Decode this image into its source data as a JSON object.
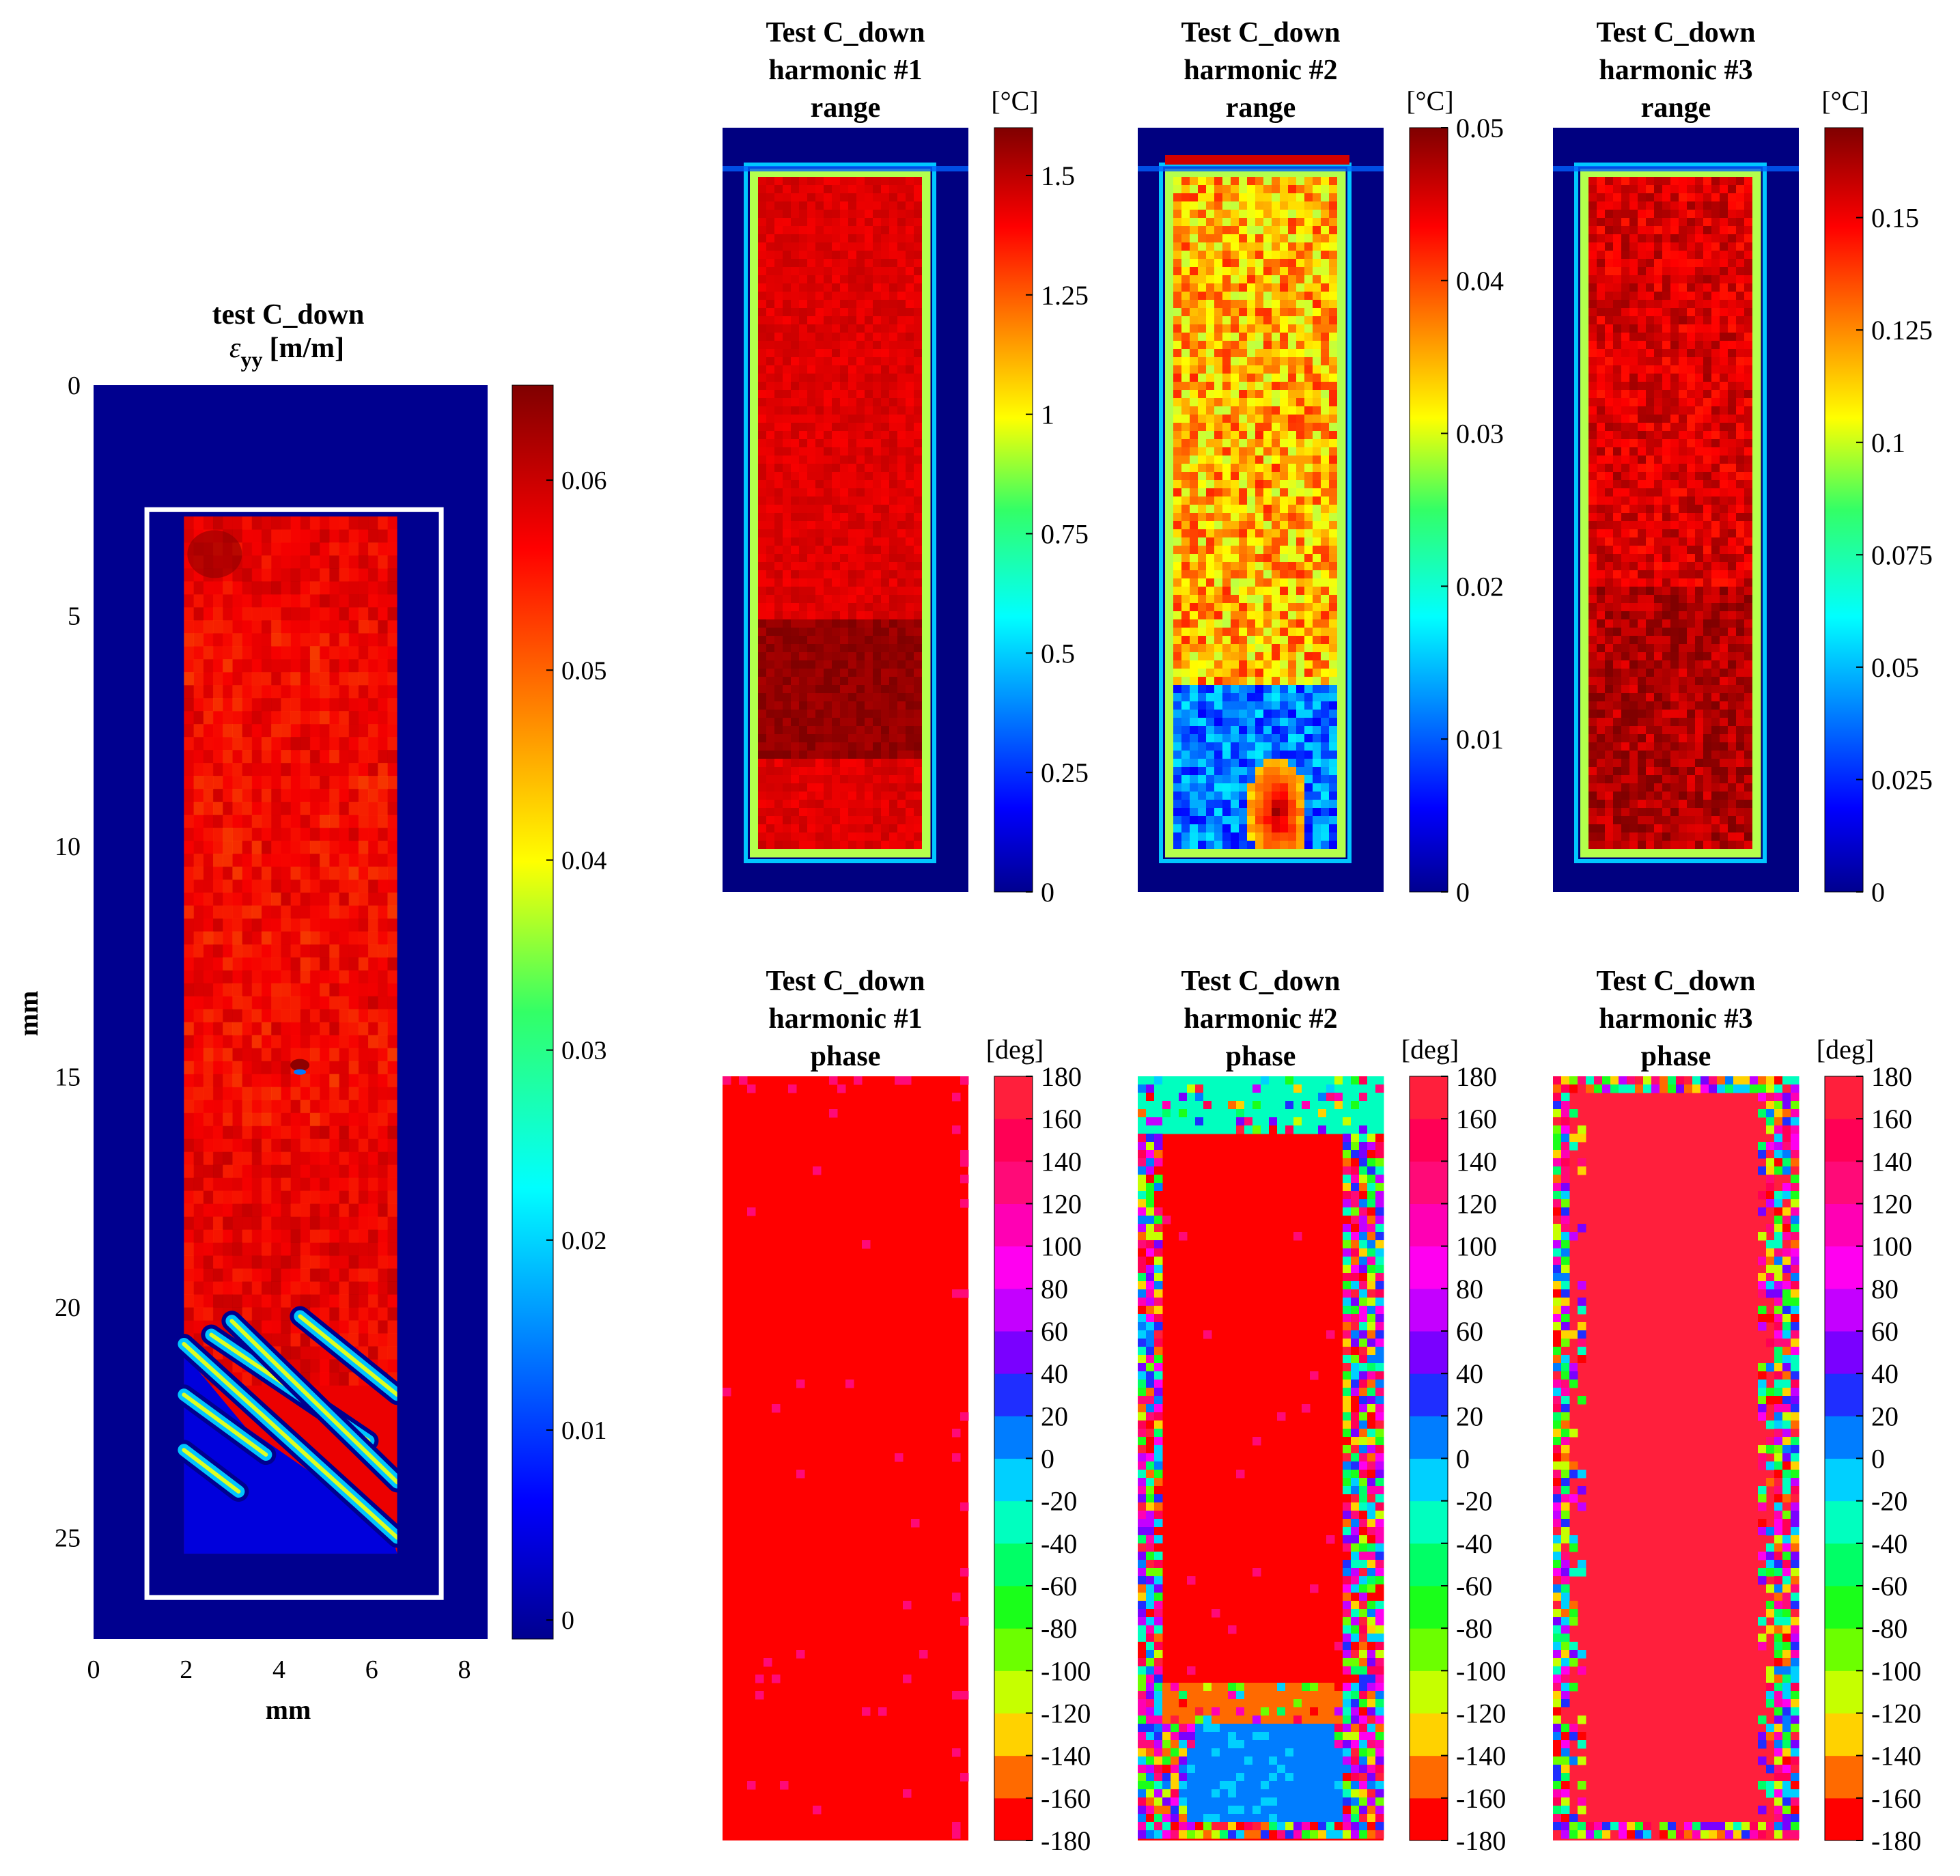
{
  "chart_data": [
    {
      "type": "heatmap",
      "id": "strain",
      "title": [
        "test C_down",
        "ε_yy [m/m]"
      ],
      "title_line1": "test C_down",
      "title_symbol": "ε",
      "title_subscript": "yy",
      "title_unit": "[m/m]",
      "xlabel": "mm",
      "ylabel": "mm",
      "xticks": [
        "0",
        "2",
        "4",
        "6",
        "8"
      ],
      "yticks": [
        "0",
        "5",
        "10",
        "15",
        "20",
        "25"
      ],
      "xlim": [
        0,
        8.5
      ],
      "ylim": [
        0,
        27.2
      ],
      "specimen_region_mm": {
        "x": [
          1.95,
          6.55
        ],
        "y": [
          2.85,
          25.35
        ]
      },
      "roi_box_mm": {
        "x": [
          1.15,
          7.5
        ],
        "y": [
          2.7,
          26.3
        ]
      },
      "colorbar_ticks": [
        "0",
        "0.01",
        "0.02",
        "0.03",
        "0.04",
        "0.05",
        "0.06"
      ],
      "colorbar_values": [
        0,
        0.01,
        0.02,
        0.03,
        0.04,
        0.05,
        0.06
      ],
      "clim": [
        -0.001,
        0.065
      ],
      "colormap": "jet",
      "background_value": 0,
      "dominant_value": 0.058,
      "shear_band_region_y_mm": [
        20.3,
        25.35
      ]
    },
    {
      "type": "heatmap",
      "id": "h1_range",
      "title": [
        "Test C_down",
        "harmonic #1",
        "range"
      ],
      "unit": "[°C]",
      "colorbar_ticks": [
        "0",
        "0.25",
        "0.5",
        "0.75",
        "1",
        "1.25",
        "1.5"
      ],
      "colorbar_values": [
        0,
        0.25,
        0.5,
        0.75,
        1,
        1.25,
        1.5
      ],
      "clim": [
        0,
        1.6
      ],
      "colormap": "jet",
      "dominant_value": 1.45
    },
    {
      "type": "heatmap",
      "id": "h2_range",
      "title": [
        "Test C_down",
        "harmonic #2",
        "range"
      ],
      "unit": "[°C]",
      "colorbar_ticks": [
        "0",
        "0.01",
        "0.02",
        "0.03",
        "0.04",
        "0.05"
      ],
      "colorbar_values": [
        0,
        0.01,
        0.02,
        0.03,
        0.04,
        0.05
      ],
      "clim": [
        0,
        0.05
      ],
      "colormap": "jet",
      "dominant_value": 0.035
    },
    {
      "type": "heatmap",
      "id": "h3_range",
      "title": [
        "Test C_down",
        "harmonic #3",
        "range"
      ],
      "unit": "[°C]",
      "colorbar_ticks": [
        "0",
        "0.025",
        "0.05",
        "0.075",
        "0.1",
        "0.125",
        "0.15"
      ],
      "colorbar_values": [
        0,
        0.025,
        0.05,
        0.075,
        0.1,
        0.125,
        0.15
      ],
      "clim": [
        0,
        0.17
      ],
      "colormap": "jet",
      "dominant_value": 0.155
    },
    {
      "type": "heatmap",
      "id": "h1_phase",
      "title": [
        "Test C_down",
        "harmonic #1",
        "phase"
      ],
      "unit": "[deg]",
      "colorbar_ticks": [
        "-180",
        "-160",
        "-140",
        "-120",
        "-100",
        "-80",
        "-60",
        "-40",
        "-20",
        "0",
        "20",
        "40",
        "60",
        "80",
        "100",
        "120",
        "140",
        "160",
        "180"
      ],
      "colorbar_values": [
        -180,
        -160,
        -140,
        -120,
        -100,
        -80,
        -60,
        -40,
        -20,
        0,
        20,
        40,
        60,
        80,
        100,
        120,
        140,
        160,
        180
      ],
      "clim": [
        -180,
        180
      ],
      "colormap": "hsv-discrete-18",
      "dominant_value": -170
    },
    {
      "type": "heatmap",
      "id": "h2_phase",
      "title": [
        "Test C_down",
        "harmonic #2",
        "phase"
      ],
      "unit": "[deg]",
      "colorbar_ticks": [
        "-180",
        "-160",
        "-140",
        "-120",
        "-100",
        "-80",
        "-60",
        "-40",
        "-20",
        "0",
        "20",
        "40",
        "60",
        "80",
        "100",
        "120",
        "140",
        "160",
        "180"
      ],
      "colorbar_values": [
        -180,
        -160,
        -140,
        -120,
        -100,
        -80,
        -60,
        -40,
        -20,
        0,
        20,
        40,
        60,
        80,
        100,
        120,
        140,
        160,
        180
      ],
      "clim": [
        -180,
        180
      ],
      "colormap": "hsv-discrete-18",
      "dominant_value": -170,
      "lower_zone_value": 5
    },
    {
      "type": "heatmap",
      "id": "h3_phase",
      "title": [
        "Test C_down",
        "harmonic #3",
        "phase"
      ],
      "unit": "[deg]",
      "colorbar_ticks": [
        "-180",
        "-160",
        "-140",
        "-120",
        "-100",
        "-80",
        "-60",
        "-40",
        "-20",
        "0",
        "20",
        "40",
        "60",
        "80",
        "100",
        "120",
        "140",
        "160",
        "180"
      ],
      "colorbar_values": [
        -180,
        -160,
        -140,
        -120,
        -100,
        -80,
        -60,
        -40,
        -20,
        0,
        20,
        40,
        60,
        80,
        100,
        120,
        140,
        160,
        180
      ],
      "clim": [
        -180,
        180
      ],
      "colormap": "hsv-discrete-18",
      "dominant_value": 170
    }
  ],
  "phase_colors": [
    "#ff0000",
    "#ff6a00",
    "#ffd200",
    "#c6ff00",
    "#6cff00",
    "#1aff1a",
    "#00ff66",
    "#00ffbf",
    "#00d0ff",
    "#007dff",
    "#1f2eff",
    "#7a00ff",
    "#c400ff",
    "#ff00f0",
    "#ff00b4",
    "#ff0a78",
    "#ff0055",
    "#ff1f3c"
  ]
}
